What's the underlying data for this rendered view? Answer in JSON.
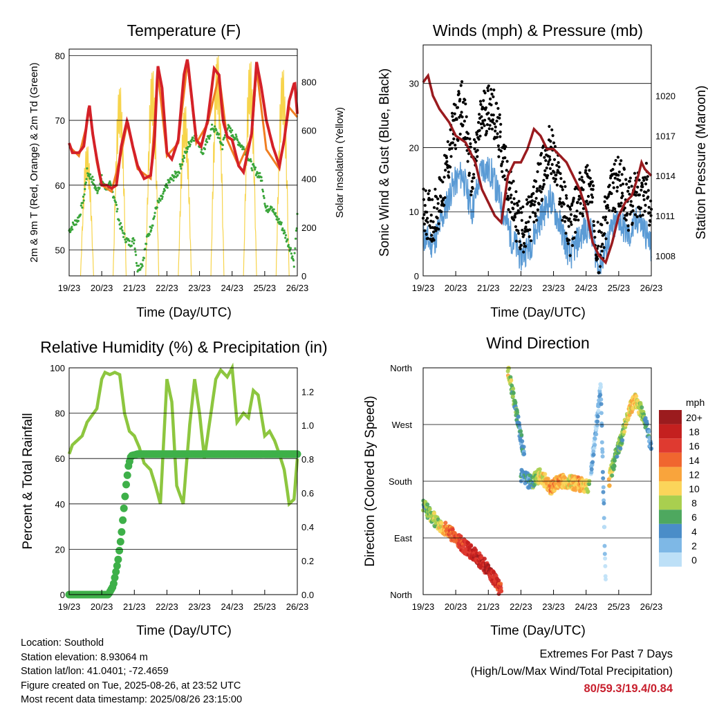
{
  "x_ticks": [
    "19/23",
    "20/23",
    "21/23",
    "22/23",
    "23/23",
    "24/23",
    "25/23",
    "26/23"
  ],
  "chart_data": [
    {
      "type": "line",
      "title": "Temperature (F)",
      "xlabel": "Time (Day/UTC)",
      "ylabel": "2m & 9m T (Red, Orange) & 2m Td (Green)",
      "ylabel_right": "Solar Insolation (Yellow)",
      "ylim": [
        46,
        81
      ],
      "ylim_right": [
        0,
        935
      ],
      "yticks": [
        "50",
        "60",
        "70",
        "80"
      ],
      "yticks_right": [
        "0",
        "200",
        "400",
        "600",
        "800"
      ],
      "x_unit": "days from 19/23",
      "series": [
        {
          "name": "2m T",
          "color": "#d42128",
          "x": [
            0,
            0.1,
            0.3,
            0.45,
            0.55,
            0.62,
            0.72,
            0.85,
            1.0,
            1.15,
            1.3,
            1.45,
            1.6,
            1.78,
            1.95,
            2.1,
            2.3,
            2.5,
            2.62,
            2.72,
            2.85,
            3.0,
            3.15,
            3.35,
            3.52,
            3.63,
            3.75,
            3.9,
            4.05,
            4.25,
            4.45,
            4.6,
            4.72,
            4.85,
            5.0,
            5.2,
            5.35,
            5.6,
            5.75,
            5.9,
            6.05,
            6.25,
            6.45,
            6.6,
            6.75,
            6.92,
            7.0
          ],
          "y": [
            66.5,
            65,
            65,
            66,
            70,
            72.5,
            68,
            64,
            60,
            60,
            59.5,
            60,
            66,
            70,
            66,
            63,
            61,
            61.5,
            67,
            78.5,
            75,
            65,
            64,
            67,
            77,
            79.5,
            74,
            67,
            66,
            70,
            78,
            77,
            70,
            67.5,
            67,
            63,
            62,
            68,
            79,
            75,
            70,
            66,
            63,
            67,
            73,
            76,
            71
          ]
        },
        {
          "name": "9m T",
          "color": "#f07f22",
          "x": [
            0,
            0.3,
            0.55,
            0.62,
            0.85,
            1.0,
            1.3,
            1.6,
            1.78,
            2.1,
            2.5,
            2.72,
            3.0,
            3.35,
            3.63,
            3.9,
            4.25,
            4.6,
            4.85,
            5.2,
            5.6,
            5.75,
            6.05,
            6.45,
            6.75,
            7.0
          ],
          "y": [
            66,
            64.5,
            69.5,
            72,
            63.5,
            60,
            59,
            65,
            69.5,
            62.5,
            61,
            77.5,
            64.5,
            66.5,
            79,
            66.5,
            69.5,
            77,
            67,
            63,
            67.5,
            78,
            65.5,
            62.5,
            72,
            70.5
          ]
        },
        {
          "name": "2m Td",
          "color": "#3aa53a",
          "x": [
            0,
            0.15,
            0.3,
            0.45,
            0.55,
            0.7,
            0.85,
            1.0,
            1.1,
            1.25,
            1.4,
            1.55,
            1.7,
            1.85,
            2.0,
            2.1,
            2.25,
            2.4,
            2.55,
            2.7,
            2.85,
            3.0,
            3.15,
            3.35,
            3.5,
            3.65,
            3.8,
            3.95,
            4.1,
            4.25,
            4.4,
            4.55,
            4.7,
            4.85,
            5.0,
            5.15,
            5.3,
            5.45,
            5.6,
            5.75,
            5.9,
            6.05,
            6.2,
            6.35,
            6.5,
            6.65,
            6.8,
            6.9,
            7.0
          ],
          "y": [
            53,
            54,
            55,
            58,
            62,
            61,
            59,
            61,
            59.5,
            60,
            58,
            54,
            52,
            51,
            51.5,
            47,
            48,
            52,
            54,
            57,
            58,
            60,
            61,
            62,
            64,
            66,
            67.5,
            67,
            65,
            67,
            69,
            68,
            66,
            69,
            68,
            67,
            66,
            65,
            63,
            62,
            61,
            56,
            57,
            55,
            54,
            52,
            50,
            48,
            55
          ]
        },
        {
          "name": "Solar Insolation",
          "color": "#f7d44c",
          "axis": "right",
          "days": [
            0,
            1,
            2,
            3,
            4,
            5,
            6
          ],
          "peaks": [
            550,
            800,
            870,
            720,
            935,
            910,
            875
          ]
        }
      ]
    },
    {
      "type": "scatter",
      "title": "Winds (mph) & Pressure (mb)",
      "xlabel": "Time (Day/UTC)",
      "ylabel": "Sonic Wind & Gust (Blue, Black)",
      "ylabel_right": "Station Pressure (Maroon)",
      "ylim": [
        0,
        36
      ],
      "ylim_right": [
        1006.5,
        1023.8
      ],
      "yticks": [
        "0",
        "10",
        "20",
        "30"
      ],
      "yticks_right": [
        "1008",
        "1011",
        "1014",
        "1017",
        "1020"
      ],
      "x_unit": "days from 19/23",
      "series": [
        {
          "name": "Sonic Wind",
          "color": "#5b9bd5",
          "x": [
            0,
            0.3,
            0.6,
            0.9,
            1.2,
            1.5,
            1.8,
            2.1,
            2.4,
            2.7,
            3.0,
            3.3,
            3.6,
            3.9,
            4.2,
            4.5,
            4.8,
            5.1,
            5.4,
            5.7,
            6.0,
            6.3,
            6.6,
            6.9,
            7.0
          ],
          "y": [
            6,
            5,
            9,
            14,
            16,
            10,
            17,
            16,
            11,
            6,
            3,
            5,
            9,
            12,
            8,
            3,
            6,
            8,
            1,
            6,
            9,
            6,
            9,
            6,
            4
          ]
        },
        {
          "name": "Gust",
          "color": "#000000",
          "x": [
            0,
            0.3,
            0.6,
            0.9,
            1.2,
            1.5,
            1.8,
            2.1,
            2.4,
            2.7,
            3.0,
            3.3,
            3.6,
            3.9,
            4.2,
            4.5,
            4.8,
            5.1,
            5.4,
            5.7,
            6.0,
            6.3,
            6.6,
            6.9,
            7.0
          ],
          "y": [
            10,
            9,
            13,
            22,
            27,
            15,
            25,
            27,
            20,
            12,
            7,
            9,
            15,
            20,
            14,
            7,
            12,
            15,
            3,
            12,
            15,
            11,
            13,
            14,
            8
          ]
        },
        {
          "name": "Station Pressure",
          "color": "#9a1b1f",
          "axis": "right",
          "x": [
            0,
            0.15,
            0.3,
            0.5,
            0.8,
            1.0,
            1.3,
            1.6,
            1.8,
            2.0,
            2.2,
            2.4,
            2.6,
            2.8,
            3.0,
            3.2,
            3.4,
            3.6,
            3.8,
            4.0,
            4.2,
            4.4,
            4.6,
            4.8,
            5.0,
            5.2,
            5.4,
            5.6,
            5.8,
            6.0,
            6.2,
            6.4,
            6.6,
            6.7,
            6.8,
            7.0
          ],
          "y": [
            1021,
            1021.5,
            1020,
            1019,
            1018,
            1017,
            1016.5,
            1015,
            1013,
            1012,
            1011,
            1010.5,
            1014,
            1015,
            1015,
            1016,
            1017.5,
            1017,
            1016,
            1016,
            1015.5,
            1015,
            1014,
            1013,
            1011.5,
            1009,
            1008,
            1007.5,
            1009,
            1011,
            1012,
            1012.5,
            1014,
            1015,
            1014.5,
            1014
          ]
        }
      ]
    },
    {
      "type": "line",
      "title": "Relative Humidity (%) & Precipitation (in)",
      "xlabel": "Time (Day/UTC)",
      "ylabel": "Percent & Total Rainfall",
      "ylim": [
        0,
        100
      ],
      "ylim_right": [
        0,
        1.34
      ],
      "yticks": [
        "0",
        "20",
        "40",
        "60",
        "80",
        "100"
      ],
      "yticks_right": [
        "0.0",
        "0.2",
        "0.4",
        "0.6",
        "0.8",
        "1.0",
        "1.2"
      ],
      "x_unit": "days from 19/23",
      "series": [
        {
          "name": "Relative Humidity",
          "color": "#8dc63f",
          "x": [
            0,
            0.1,
            0.25,
            0.4,
            0.55,
            0.7,
            0.85,
            1.0,
            1.1,
            1.25,
            1.4,
            1.55,
            1.7,
            1.85,
            2.0,
            2.15,
            2.3,
            2.5,
            2.65,
            2.8,
            3.0,
            3.15,
            3.3,
            3.5,
            3.7,
            3.85,
            4.0,
            4.15,
            4.35,
            4.5,
            4.65,
            4.85,
            5.0,
            5.15,
            5.35,
            5.5,
            5.65,
            5.8,
            6.0,
            6.15,
            6.3,
            6.45,
            6.6,
            6.75,
            6.9,
            7.0
          ],
          "y": [
            62,
            66,
            68,
            70,
            76,
            79,
            82,
            95,
            98,
            97,
            98,
            97,
            80,
            72,
            70,
            65,
            58,
            55,
            48,
            40,
            95,
            85,
            48,
            40,
            75,
            95,
            80,
            60,
            80,
            95,
            99,
            96,
            100,
            76,
            80,
            78,
            90,
            88,
            70,
            72,
            68,
            62,
            55,
            40,
            42,
            60
          ]
        },
        {
          "name": "Total Rainfall",
          "color": "#3eb049",
          "axis": "right",
          "x": [
            0,
            1.2,
            1.35,
            1.5,
            1.6,
            1.7,
            1.75,
            1.82,
            1.9,
            2.1,
            7.0
          ],
          "y": [
            0,
            0,
            0.05,
            0.2,
            0.35,
            0.55,
            0.65,
            0.76,
            0.82,
            0.83,
            0.83
          ]
        }
      ]
    },
    {
      "type": "scatter",
      "title": "Wind Direction",
      "xlabel": "Time (Day/UTC)",
      "ylabel": "Direction (Colored By Speed)",
      "yticks": [
        "North",
        "East",
        "South",
        "West",
        "North"
      ],
      "ylim": [
        0,
        360
      ],
      "x_unit": "days from 19/23",
      "legend": {
        "title": "mph",
        "labels": [
          "20+",
          "18",
          "16",
          "14",
          "12",
          "10",
          "8",
          "6",
          "4",
          "2",
          "0"
        ],
        "colors": [
          "#9b1b1e",
          "#c4201f",
          "#df3a30",
          "#f0662f",
          "#f9a43c",
          "#fbd55a",
          "#a9cf4f",
          "#4ea85f",
          "#4a8dc8",
          "#7eb8e6",
          "#bde0f7"
        ],
        "placement": "right"
      },
      "segments": [
        {
          "x": [
            0,
            0.4,
            0.8,
            1.2,
            1.6,
            2.0,
            2.4
          ],
          "y": [
            142,
            115,
            100,
            80,
            62,
            40,
            5
          ],
          "speed": [
            6,
            8,
            14,
            16,
            18,
            18,
            16
          ]
        },
        {
          "x": [
            2.6,
            2.75,
            2.85,
            3.0,
            3.1
          ],
          "y": [
            358,
            320,
            290,
            250,
            220
          ],
          "speed": [
            10,
            6,
            6,
            4,
            4
          ]
        },
        {
          "x": [
            3.0,
            3.3,
            3.6,
            3.9,
            4.2,
            4.5,
            4.8,
            5.1
          ],
          "y": [
            190,
            178,
            190,
            170,
            180,
            178,
            175,
            170
          ],
          "speed": [
            4,
            4,
            10,
            12,
            12,
            10,
            12,
            8
          ]
        },
        {
          "x": [
            5.15,
            5.3,
            5.45,
            5.6
          ],
          "y": [
            200,
            260,
            330,
            20
          ],
          "speed": [
            2,
            2,
            2,
            1
          ]
        },
        {
          "x": [
            5.7,
            5.9,
            6.1,
            6.3,
            6.5,
            6.7,
            6.9,
            7.0
          ],
          "y": [
            180,
            220,
            250,
            290,
            310,
            290,
            260,
            230
          ],
          "speed": [
            10,
            6,
            6,
            10,
            10,
            8,
            4,
            2
          ]
        }
      ]
    }
  ],
  "info": {
    "location": "Location: Southold",
    "elevation": "Station elevation: 8.93064 m",
    "latlon": "Station lat/lon: 41.0401; -72.4659",
    "created": "Figure created on Tue, 2025-08-26, at 23:52 UTC",
    "recent": "Most recent data timestamp: 2025/08/26 23:15:00"
  },
  "extremes": {
    "title": "Extremes For Past 7 Days",
    "subtitle": "(High/Low/Max Wind/Total Precipitation)",
    "values": "80/59.3/19.4/0.84"
  }
}
